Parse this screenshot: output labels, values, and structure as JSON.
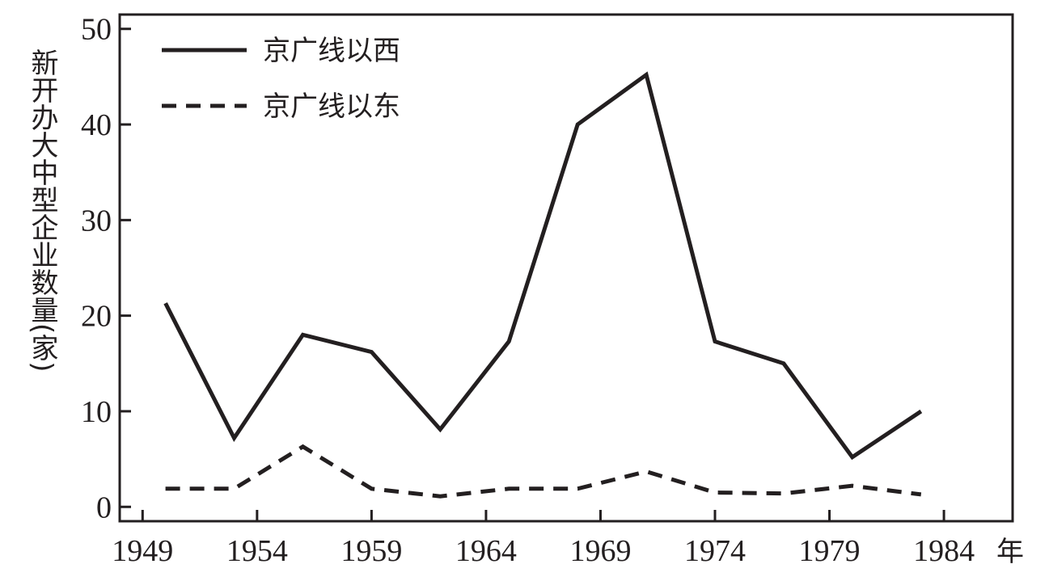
{
  "chart_data": {
    "type": "line",
    "title": "",
    "xlabel": "年",
    "ylabel": "新开办大中型企业数量(家)",
    "xlim": [
      1948,
      1987
    ],
    "ylim": [
      -1.5,
      51.5
    ],
    "xticks": [
      1949,
      1954,
      1959,
      1964,
      1969,
      1974,
      1979,
      1984
    ],
    "yticks": [
      0,
      10,
      20,
      30,
      40,
      50
    ],
    "grid": false,
    "legend": "top-left",
    "series": [
      {
        "name": "京广线以西",
        "style": "solid",
        "x": [
          1950,
          1953,
          1956,
          1959,
          1962,
          1965,
          1968,
          1971,
          1974,
          1977,
          1980,
          1983
        ],
        "y": [
          21.3,
          7.2,
          18.0,
          16.2,
          8.1,
          17.3,
          40.0,
          45.2,
          17.3,
          15.0,
          5.2,
          10.0
        ]
      },
      {
        "name": "京广线以东",
        "style": "dashed",
        "x": [
          1950,
          1953,
          1956,
          1959,
          1962,
          1965,
          1968,
          1971,
          1974,
          1977,
          1980,
          1983
        ],
        "y": [
          1.9,
          1.9,
          6.3,
          1.9,
          1.1,
          1.9,
          1.9,
          3.7,
          1.5,
          1.4,
          2.2,
          1.3
        ]
      }
    ]
  }
}
